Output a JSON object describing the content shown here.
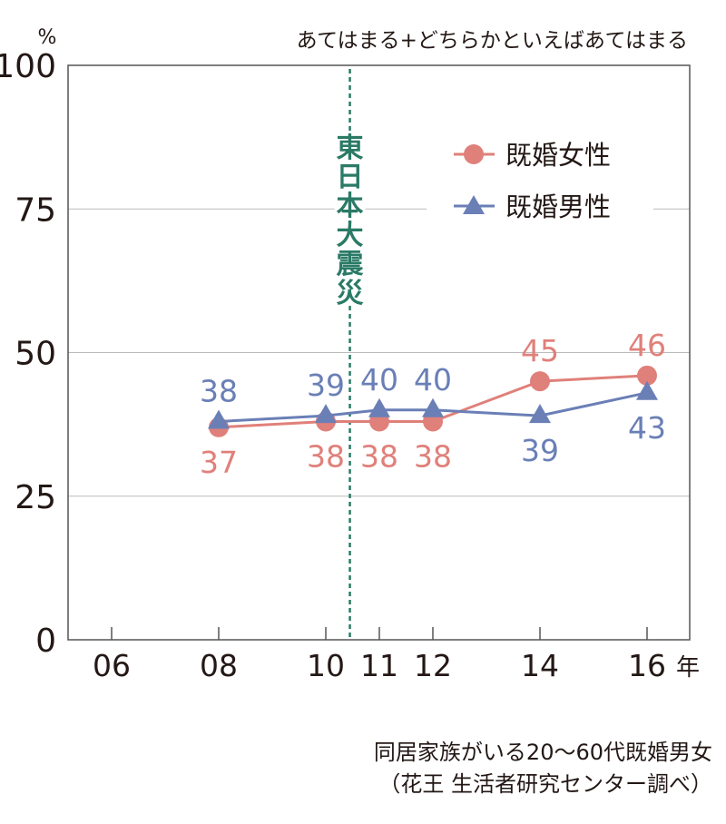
{
  "chart_data": {
    "type": "line",
    "title": "あてはまる+どちらかといえばあてはまる",
    "ylabel": "%",
    "xlabel_unit": "年",
    "ylim": [
      0,
      100
    ],
    "yticks": [
      0,
      25,
      50,
      75,
      100
    ],
    "ytick_labels": [
      "0",
      "25",
      "50",
      "75",
      "100"
    ],
    "x_tick_years": [
      6,
      8,
      10,
      11,
      12,
      14,
      16
    ],
    "x_tick_labels": [
      "06",
      "08",
      "10",
      "11",
      "12",
      "14",
      "16"
    ],
    "grid": true,
    "legend_position": "top-right",
    "annotation": {
      "text": "東日本大震災",
      "x_year": 10.45,
      "color": "#2a7a66"
    },
    "series": [
      {
        "name": "既婚女性",
        "marker": "circle",
        "color": "#e0807a",
        "x": [
          8,
          10,
          11,
          12,
          14,
          16
        ],
        "values": [
          37,
          38,
          38,
          38,
          45,
          46
        ],
        "label_pos": [
          "below",
          "below",
          "below",
          "below",
          "above",
          "above"
        ]
      },
      {
        "name": "既婚男性",
        "marker": "triangle",
        "color": "#6a7fb6",
        "x": [
          8,
          10,
          11,
          12,
          14,
          16
        ],
        "values": [
          38,
          39,
          40,
          40,
          39,
          43
        ],
        "label_pos": [
          "above",
          "above",
          "above",
          "above",
          "below",
          "below"
        ]
      }
    ],
    "source_line1": "同居家族がいる20〜60代既婚男女",
    "source_line2": "（花王 生活者研究センター調べ）"
  }
}
